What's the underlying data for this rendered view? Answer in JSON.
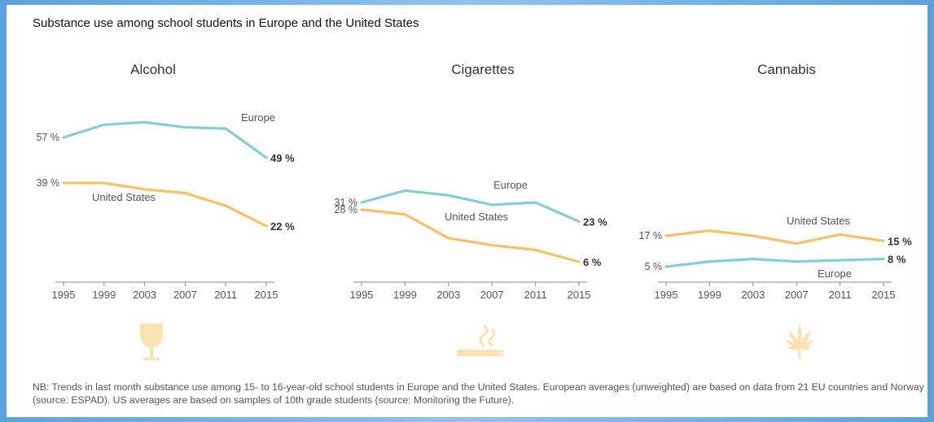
{
  "title": "Substance use among school students in Europe and the United States",
  "note": "NB: Trends in last month substance use among 15- to 16-year-old school students in Europe and the United States. European averages (unweighted) are based on data from 21 EU countries and Norway (source: ESPAD). US averages are based on samples of 10th grade students (source: Monitoring the Future).",
  "colors": {
    "europe": "#7fd0db",
    "us": "#f8c25c",
    "icon": "#fbe3b0",
    "axis": "#888888"
  },
  "chart_data": [
    {
      "type": "line",
      "title": "Alcohol",
      "icon": "wine-glass-icon",
      "x": [
        "1995",
        "1999",
        "2003",
        "2007",
        "2011",
        "2015"
      ],
      "series": [
        {
          "name": "Europe",
          "color": "#7fd0db",
          "values": [
            57,
            62,
            63,
            61,
            60.5,
            49
          ],
          "start_label": "57 %",
          "end_label": "49 %"
        },
        {
          "name": "United States",
          "color": "#f8c25c",
          "values": [
            39,
            39,
            36.5,
            35,
            30,
            22
          ],
          "start_label": "39 %",
          "end_label": "22 %"
        }
      ]
    },
    {
      "type": "line",
      "title": "Cigarettes",
      "icon": "cigarette-icon",
      "x": [
        "1995",
        "1999",
        "2003",
        "2007",
        "2011",
        "2015"
      ],
      "series": [
        {
          "name": "Europe",
          "color": "#7fd0db",
          "values": [
            31,
            36,
            34,
            30,
            31,
            23
          ],
          "start_label": "31 %",
          "end_label": "23 %"
        },
        {
          "name": "United States",
          "color": "#f8c25c",
          "values": [
            28,
            26,
            16,
            13,
            11,
            6
          ],
          "start_label": "28 %",
          "end_label": "6 %"
        }
      ]
    },
    {
      "type": "line",
      "title": "Cannabis",
      "icon": "cannabis-leaf-icon",
      "x": [
        "1995",
        "1999",
        "2003",
        "2007",
        "2011",
        "2015"
      ],
      "series": [
        {
          "name": "United States",
          "color": "#f8c25c",
          "values": [
            17,
            19,
            17,
            14,
            17.5,
            15
          ],
          "start_label": "17 %",
          "end_label": "15 %"
        },
        {
          "name": "Europe",
          "color": "#7fd0db",
          "values": [
            5,
            7,
            8,
            7,
            7.5,
            8
          ],
          "start_label": "5 %",
          "end_label": "8 %"
        }
      ]
    }
  ]
}
